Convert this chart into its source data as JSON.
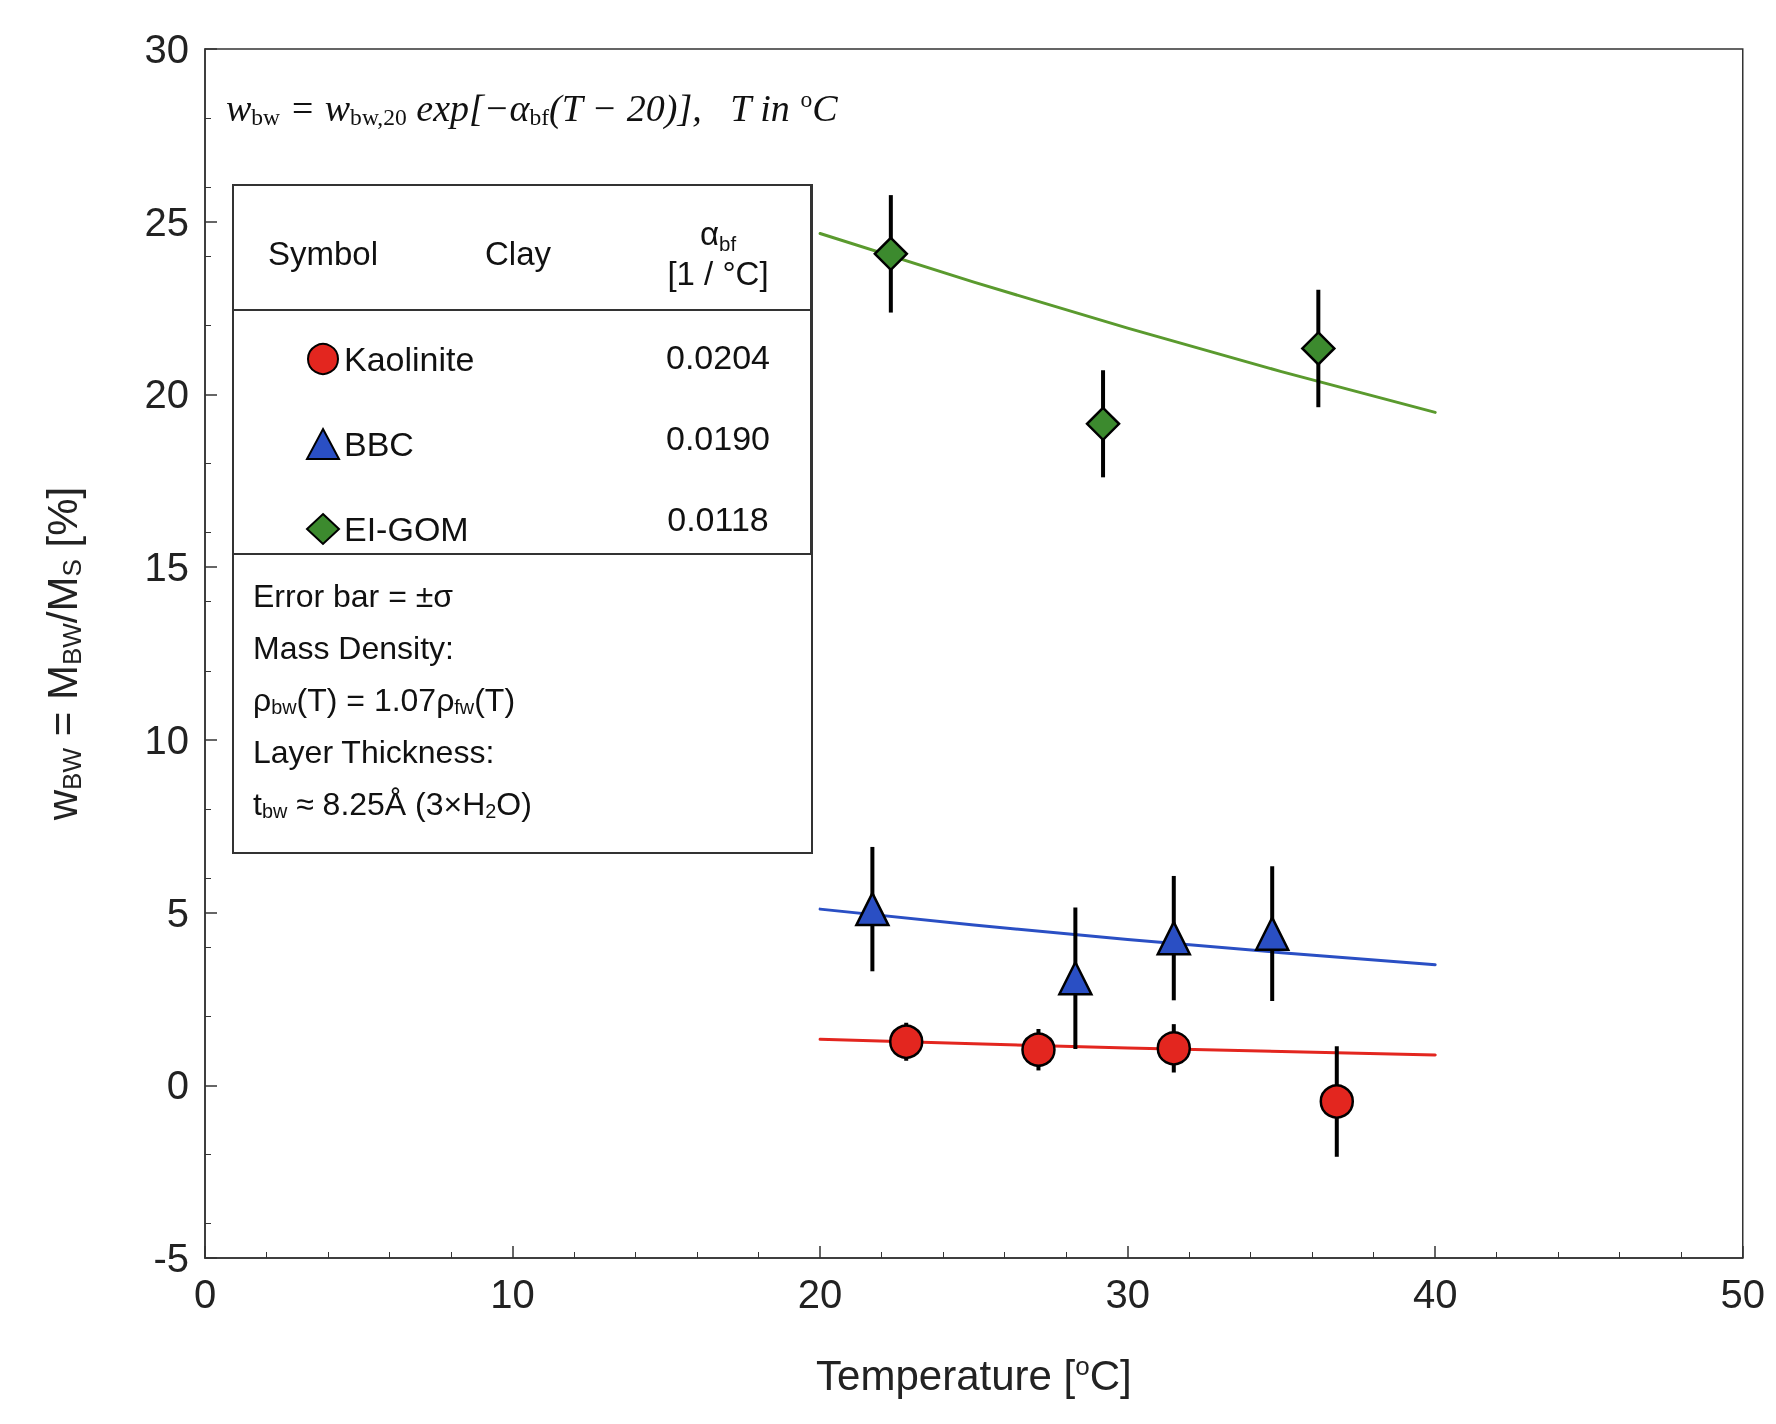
{
  "chart_data": {
    "type": "scatter",
    "xlabel": "Temperature [$^{o}$C]",
    "ylabel": "w$_{BW}$ = M$_{BW}$/M$_{S}$ [%]",
    "xlim": [
      0,
      50
    ],
    "xticks": [
      0,
      10,
      20,
      30,
      40,
      50
    ],
    "ylim": [
      -5,
      30
    ],
    "yticks": [
      -5,
      0,
      5,
      10,
      15,
      20,
      25,
      30
    ],
    "grid": false,
    "legend": "top left",
    "series": [
      {
        "name": "Kaolinite",
        "color": "#e3261f",
        "marker": "circle",
        "x": [
          22.8,
          27.1,
          31.5,
          36.8
        ],
        "values": [
          1.26,
          1.03,
          1.07,
          -0.47
        ],
        "errors": [
          0.55,
          0.6,
          0.7,
          1.6
        ]
      },
      {
        "name": "BBC",
        "color": "#2a4fc4",
        "marker": "triangle",
        "x": [
          21.7,
          28.3,
          31.5,
          34.7
        ],
        "values": [
          5.1,
          3.1,
          4.26,
          4.39
        ],
        "errors": [
          1.8,
          2.05,
          1.8,
          1.95
        ]
      },
      {
        "name": "EI-GOM",
        "color": "#3c8a2e",
        "marker": "diamond",
        "x": [
          22.3,
          29.2,
          36.2
        ],
        "values": [
          24.07,
          19.15,
          21.33
        ],
        "errors": [
          1.7,
          1.55,
          1.7
        ]
      },
      {
        "type": "line",
        "color": "#e3261f",
        "x": [
          20,
          25,
          30,
          35,
          40
        ],
        "values": [
          1.33,
          1.2,
          1.08,
          0.98,
          0.88
        ]
      },
      {
        "type": "line",
        "color": "#2a4fc4",
        "x": [
          20,
          25,
          30,
          35,
          40
        ],
        "values": [
          5.1,
          4.64,
          4.22,
          3.84,
          3.49
        ]
      },
      {
        "type": "line",
        "color": "#5a9a2e",
        "x": [
          20,
          25,
          30,
          35,
          40
        ],
        "values": [
          24.66,
          23.25,
          21.92,
          20.66,
          19.48
        ]
      }
    ],
    "annotations": [
      "w$_{bw}$ = w$_{bw,20}$ exp[−α$_{bf}$(T − 20)],   T in $^{o}$C",
      "Symbol",
      "Clay",
      "α$_{bf}$\n[1 / °C]",
      "0.0204",
      "0.0190",
      "0.0118",
      "Error bar = ±σ",
      "Mass Density:",
      "ρ$_{bw}$(T) = 1.07ρ$_{fw}$(T)",
      "Layer Thickness:",
      "t$_{bw}$ ≈ 8.25Å (3×H$_{2}$O)"
    ]
  }
}
